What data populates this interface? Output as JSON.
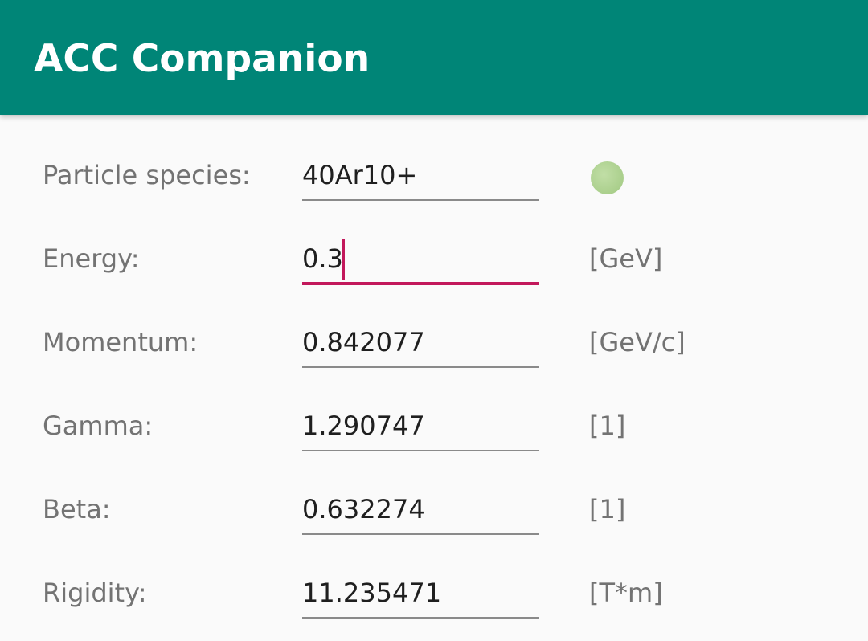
{
  "app_bar": {
    "title": "ACC Companion",
    "background_color": "#008577"
  },
  "accent_color": "#c2185b",
  "status_indicator": {
    "color": "#aacf8c",
    "icon": "status-dot-icon"
  },
  "fields": [
    {
      "label": "Particle species:",
      "value": "40Ar10+",
      "unit": ""
    },
    {
      "label": "Energy:",
      "value": "0.3",
      "unit": "[GeV]",
      "focused": true
    },
    {
      "label": "Momentum:",
      "value": "0.842077",
      "unit": "[GeV/c]"
    },
    {
      "label": "Gamma:",
      "value": "1.290747",
      "unit": "[1]"
    },
    {
      "label": "Beta:",
      "value": "0.632274",
      "unit": "[1]"
    },
    {
      "label": "Rigidity:",
      "value": "11.235471",
      "unit": "[T*m]"
    }
  ]
}
